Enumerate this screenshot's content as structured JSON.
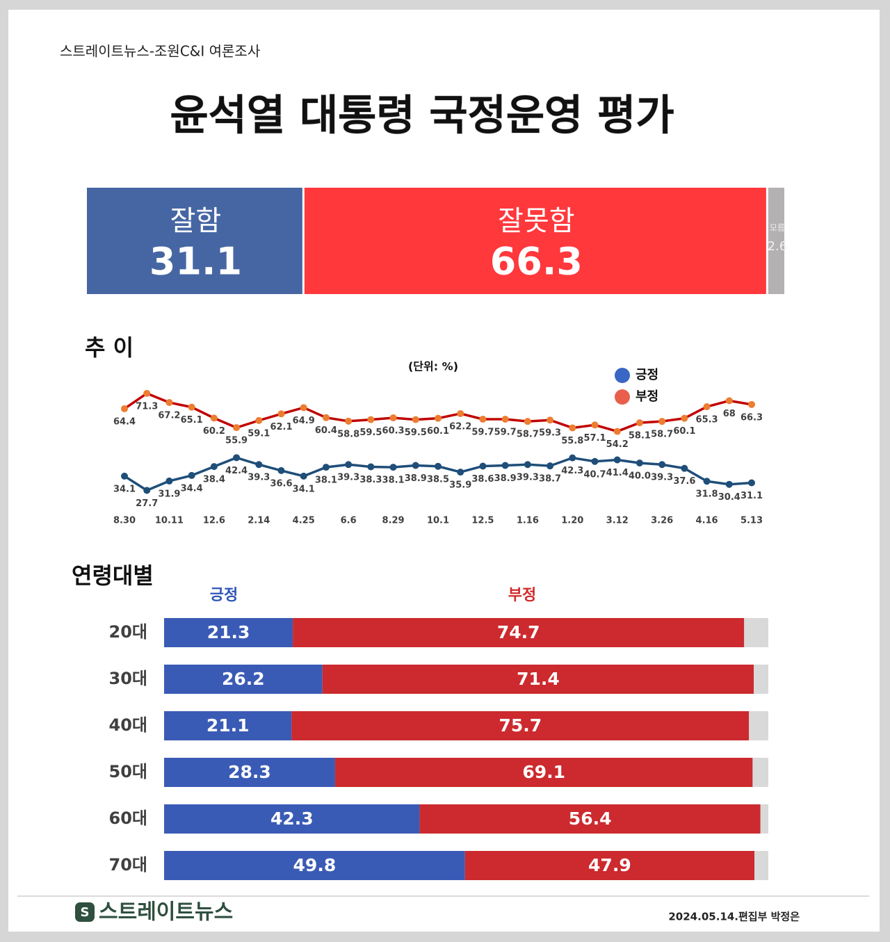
{
  "header": {
    "source": "스트레이트뉴스-조원C&I 여론조사",
    "title": "윤석열 대통령 국정운영 평가"
  },
  "chart_data": [
    {
      "type": "bar",
      "orientation": "horizontal",
      "stacked": true,
      "xlim": [
        0,
        100
      ],
      "series": [
        {
          "name": "잘함",
          "color": "#4666a3",
          "values": [
            31.1
          ]
        },
        {
          "name": "잘못함",
          "color": "#ff383c",
          "values": [
            66.3
          ]
        },
        {
          "name": "모름",
          "color": "#b3b1b1",
          "values": [
            2.6
          ]
        }
      ]
    },
    {
      "type": "line",
      "title": "추 이",
      "subtitle": "(단위: %)",
      "ylim": [
        20,
        80
      ],
      "categories": [
        "8.30",
        null,
        "10.11",
        null,
        "12.6",
        null,
        "2.14",
        null,
        "4.25",
        null,
        "6.6",
        null,
        "8.29",
        null,
        "10.1",
        null,
        "12.5",
        null,
        "1.16",
        null,
        "1.20",
        null,
        "3.12",
        null,
        "3.26",
        null,
        "4.16",
        null,
        "5.13"
      ],
      "series": [
        {
          "name": "긍정",
          "color": "#1f4e79",
          "marker_color": "#1f4e79",
          "legend_color": "#3a66c4",
          "values": [
            34.1,
            27.7,
            31.9,
            34.4,
            38.4,
            42.4,
            39.3,
            36.6,
            34.1,
            38.1,
            39.3,
            38.3,
            38.1,
            38.9,
            38.5,
            35.9,
            38.6,
            38.9,
            39.3,
            38.7,
            42.3,
            40.7,
            41.4,
            40.0,
            39.3,
            37.6,
            31.8,
            30.4,
            31.1
          ],
          "value_labels": [
            "34.1",
            "27.7",
            "31.9",
            "34.4",
            "38.4",
            "42.4",
            "39.3",
            "36.6",
            "34.1",
            "38.1",
            "39.3",
            "38.3",
            "38.1",
            "38.9",
            "38.5",
            "35.9",
            "38.6",
            "38.9",
            "39.3",
            "38.7",
            "42.3",
            "40.7",
            "41.4",
            "40.0",
            "39.3",
            "37.6",
            "31.8",
            "30.4",
            "31.1"
          ]
        },
        {
          "name": "부정",
          "color": "#c00000",
          "marker_color": "#ed7d31",
          "legend_color": "#e8604c",
          "values": [
            64.4,
            71.3,
            67.2,
            65.1,
            60.2,
            55.9,
            59.1,
            62.1,
            64.9,
            60.4,
            58.8,
            59.5,
            60.3,
            59.5,
            60.1,
            62.2,
            59.7,
            59.7,
            58.7,
            59.3,
            55.8,
            57.1,
            54.2,
            58.1,
            58.7,
            60.1,
            65.3,
            68,
            66.3
          ]
        }
      ]
    },
    {
      "type": "bar",
      "orientation": "horizontal",
      "stacked": true,
      "title": "연령대별",
      "xlim": [
        0,
        100
      ],
      "categories": [
        "20대",
        "30대",
        "40대",
        "50대",
        "60대",
        "70대"
      ],
      "series": [
        {
          "name": "긍정",
          "color": "#3a5bb5",
          "label_color": "#2f55b5",
          "values": [
            21.3,
            26.2,
            21.1,
            28.3,
            42.3,
            49.8
          ]
        },
        {
          "name": "부정",
          "color": "#cc2a2e",
          "label_color": "#d42a2a",
          "values": [
            74.7,
            71.4,
            75.7,
            69.1,
            56.4,
            47.9
          ]
        },
        {
          "color": "#d9d9d9",
          "values": [
            4.0,
            2.4,
            3.2,
            2.6,
            1.3,
            2.3
          ]
        }
      ]
    }
  ],
  "footer": {
    "logo": "스트레이트뉴스",
    "credit": "2024.05.14.편집부 박정은"
  }
}
